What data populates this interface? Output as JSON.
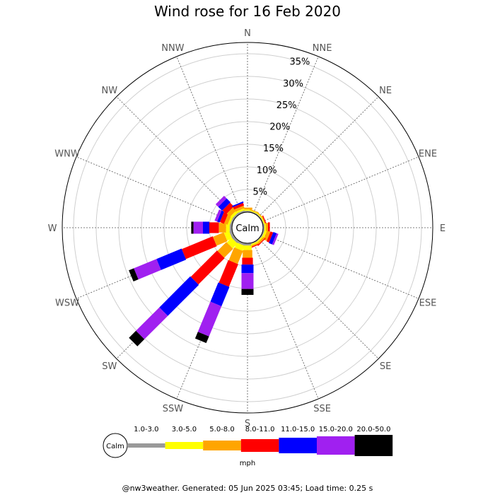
{
  "title": "Wind rose for 16 Feb 2020",
  "footer": "@nw3weather. Generated: 05 Jun 2025 03:45; Load time: 0.25 s",
  "calm_label": "Calm",
  "unit_label": "mph",
  "chart_data": {
    "type": "wind-rose",
    "title": "Wind rose for 16 Feb 2020",
    "directions": [
      "N",
      "NNE",
      "NE",
      "ENE",
      "E",
      "ESE",
      "SE",
      "SSE",
      "S",
      "SSW",
      "SW",
      "WSW",
      "W",
      "WNW",
      "NW",
      "NNW"
    ],
    "ring_labels": [
      "5%",
      "10%",
      "15%",
      "20%",
      "25%",
      "30%",
      "35%"
    ],
    "ring_values": [
      5,
      10,
      15,
      20,
      25,
      30,
      35
    ],
    "rmax": 37.5,
    "speed_bins": [
      {
        "name": "1.0-3.0",
        "color": "#999999"
      },
      {
        "name": "3.0-5.0",
        "color": "#ffff00"
      },
      {
        "name": "5.0-8.0",
        "color": "#ffa500"
      },
      {
        "name": "8.0-11.0",
        "color": "#ff0000"
      },
      {
        "name": "11.0-15.0",
        "color": "#0000ff"
      },
      {
        "name": "15.0-20.0",
        "color": "#a020f0"
      },
      {
        "name": "20.0-50.0",
        "color": "#000000"
      }
    ],
    "series": [
      {
        "direction": "N",
        "values": [
          0.3,
          0.3,
          0.4,
          0,
          0,
          0,
          0
        ]
      },
      {
        "direction": "NNE",
        "values": [
          0.2,
          0.2,
          0.2,
          0,
          0,
          0,
          0
        ]
      },
      {
        "direction": "NE",
        "values": [
          0.2,
          0.2,
          0.2,
          0,
          0,
          0,
          0
        ]
      },
      {
        "direction": "ENE",
        "values": [
          0.2,
          0.2,
          0.2,
          0.2,
          0,
          0,
          0
        ]
      },
      {
        "direction": "E",
        "values": [
          0.3,
          0.3,
          0.5,
          0.4,
          0,
          0,
          0
        ]
      },
      {
        "direction": "ESE",
        "values": [
          0.3,
          0.5,
          0.8,
          0.6,
          0.8,
          0.4,
          0
        ]
      },
      {
        "direction": "SE",
        "values": [
          0.2,
          0.3,
          0.4,
          0.2,
          0,
          0,
          0
        ]
      },
      {
        "direction": "SSE",
        "values": [
          0.2,
          0.3,
          0.3,
          0.2,
          0,
          0,
          0
        ]
      },
      {
        "direction": "S",
        "values": [
          0.5,
          1.0,
          1.7,
          1.5,
          1.9,
          3.5,
          1.3
        ]
      },
      {
        "direction": "SSW",
        "values": [
          0.5,
          1.2,
          3.1,
          5.4,
          4.6,
          7.2,
          1.6
        ]
      },
      {
        "direction": "SW",
        "values": [
          0.6,
          1.5,
          2.8,
          8.2,
          9.7,
          7.3,
          2.2
        ]
      },
      {
        "direction": "WSW",
        "values": [
          0.6,
          1.2,
          2.6,
          7.4,
          6.0,
          5.4,
          1.2
        ]
      },
      {
        "direction": "W",
        "values": [
          0.5,
          0.8,
          1.6,
          2.1,
          1.4,
          2.1,
          0.5
        ]
      },
      {
        "direction": "WNW",
        "values": [
          0.4,
          0.5,
          0.8,
          1.0,
          0.6,
          0.6,
          0
        ]
      },
      {
        "direction": "NW",
        "values": [
          0.4,
          0.6,
          1.0,
          1.2,
          1.2,
          0.8,
          0
        ]
      },
      {
        "direction": "NNW",
        "values": [
          0.4,
          0.4,
          0.6,
          0.6,
          0.3,
          0,
          0
        ]
      }
    ]
  }
}
